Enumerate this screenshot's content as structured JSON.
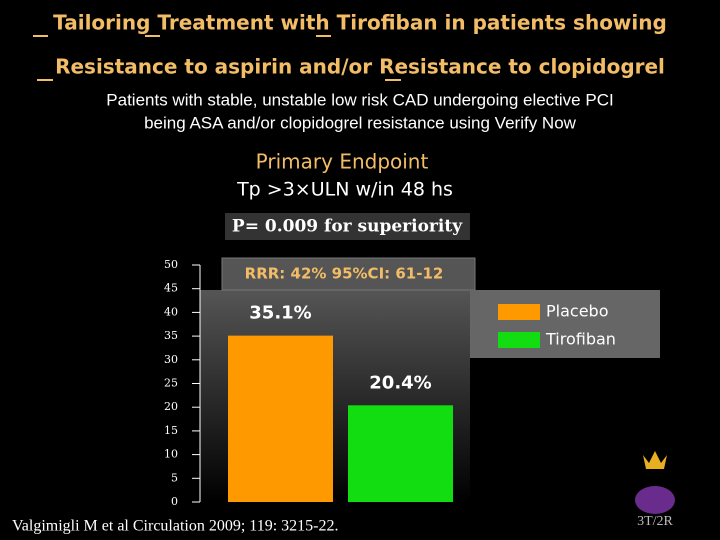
{
  "chart_data": {
    "type": "bar",
    "title": [
      "Tailoring Treatment with Tirofiban in patients showing",
      "Resistance to aspirin and/or Resistance to clopidogrel"
    ],
    "subtitle": [
      "Patients with stable, unstable low risk CAD undergoing elective PCI",
      "being ASA and/or clopidogrel resistance using Verify Now"
    ],
    "endpoint": "Primary Endpoint",
    "endpoint_detail": "Tp >3×ULN w/in 48 hs",
    "p_value": "P= 0.009 for superiority",
    "annotation": "RRR: 42% 95%CI: 61-12",
    "source": "Valgimigli M et al Circulation 2009; 119: 3215-22.",
    "categories": [
      null
    ],
    "series": [
      {
        "name": "Placebo",
        "color": "#ff9900",
        "values": [
          35.1
        ],
        "value_labels": [
          "35.1%"
        ]
      },
      {
        "name": "Tirofiban",
        "color": "#11dd11",
        "values": [
          20.4
        ],
        "value_labels": [
          "20.4%"
        ]
      }
    ],
    "ylim": [
      0,
      50
    ],
    "yticks": [
      0,
      5,
      10,
      15,
      20,
      25,
      30,
      35,
      40,
      45,
      50
    ],
    "legend": "right"
  }
}
